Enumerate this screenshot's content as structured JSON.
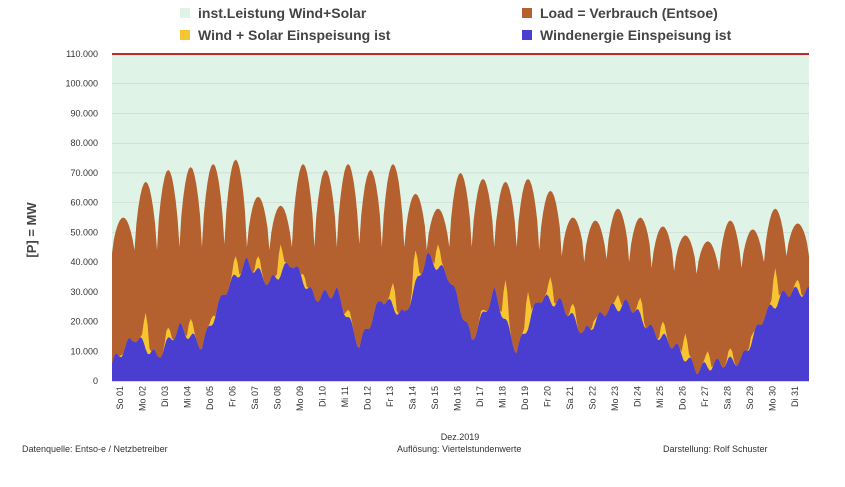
{
  "chart_data": {
    "type": "area",
    "xlabel": "Dez.2019",
    "ylabel": "[P] = MW",
    "ylim": [
      0,
      110000
    ],
    "yticks": [
      0,
      10000,
      20000,
      30000,
      40000,
      50000,
      60000,
      70000,
      80000,
      90000,
      100000,
      110000
    ],
    "ytick_labels": [
      "0",
      "10.000",
      "20.000",
      "30.000",
      "40.000",
      "50.000",
      "60.000",
      "70.000",
      "80.000",
      "90.000",
      "100.000",
      "110.000"
    ],
    "categories": [
      "So 01",
      "Mo 02",
      "Di 03",
      "Mi 04",
      "Do 05",
      "Fr 06",
      "Sa 07",
      "So 08",
      "Mo 09",
      "Di 10",
      "Mi 11",
      "Do 12",
      "Fr 13",
      "Sa 14",
      "So 15",
      "Mo 16",
      "Di 17",
      "Mi 18",
      "Do 19",
      "Fr 20",
      "Sa 21",
      "So 22",
      "Mo 23",
      "Di 24",
      "Mi 25",
      "Do 26",
      "Fr 27",
      "Sa 28",
      "So 29",
      "Mo 30",
      "Di 31"
    ],
    "installed_capacity": 110000,
    "grid": true,
    "legend_position": "top",
    "series": [
      {
        "name": "inst.Leistung Wind+Solar",
        "color": "#dff4e6",
        "daily_max": [
          110000,
          110000,
          110000,
          110000,
          110000,
          110000,
          110000,
          110000,
          110000,
          110000,
          110000,
          110000,
          110000,
          110000,
          110000,
          110000,
          110000,
          110000,
          110000,
          110000,
          110000,
          110000,
          110000,
          110000,
          110000,
          110000,
          110000,
          110000,
          110000,
          110000,
          110000
        ]
      },
      {
        "name": "Load =  Verbrauch (Entsoe)",
        "color": "#b5602f",
        "daily_max": [
          55000,
          67000,
          71000,
          72000,
          73000,
          74500,
          62000,
          59000,
          73000,
          71000,
          73000,
          71000,
          73000,
          63000,
          58000,
          70000,
          68000,
          67000,
          68000,
          64000,
          55000,
          54000,
          58000,
          55000,
          52000,
          49000,
          47000,
          54000,
          51000,
          58000,
          53000
        ],
        "daily_min": [
          43000,
          44000,
          44000,
          45000,
          45000,
          46000,
          45000,
          44000,
          45000,
          45000,
          45000,
          46000,
          45000,
          45000,
          44000,
          45000,
          45000,
          45000,
          45000,
          44000,
          42000,
          40000,
          41000,
          40000,
          38000,
          37000,
          36000,
          37000,
          38000,
          40000,
          42000
        ]
      },
      {
        "name": "Wind + Solar Einspeisung ist",
        "color": "#f7c531",
        "daily_peak": [
          9000,
          23000,
          18000,
          21000,
          22000,
          42000,
          42000,
          46000,
          36000,
          24000,
          24000,
          13000,
          33000,
          44000,
          46000,
          20000,
          24000,
          34000,
          30000,
          35000,
          26000,
          21000,
          29000,
          28000,
          20000,
          16000,
          10000,
          11000,
          16000,
          38000,
          34000
        ]
      },
      {
        "name": "Windenergie Einspeisung ist",
        "color": "#4a3ed0",
        "daily_mean": [
          6000,
          15000,
          8000,
          18000,
          12000,
          30000,
          40000,
          33000,
          40000,
          28000,
          30000,
          12000,
          28000,
          22000,
          42000,
          35000,
          14000,
          30000,
          10000,
          28000,
          26000,
          16000,
          24000,
          26000,
          17000,
          12000,
          4000,
          6000,
          7000,
          22000,
          30000
        ]
      }
    ]
  },
  "footer": {
    "source": "Datenquelle: Entso-e  / Netzbetreiber",
    "resolution": "Auflösung: Viertelstundenwerte",
    "author": "Darstellung: Rolf Schuster",
    "month": "Dez.2019"
  }
}
